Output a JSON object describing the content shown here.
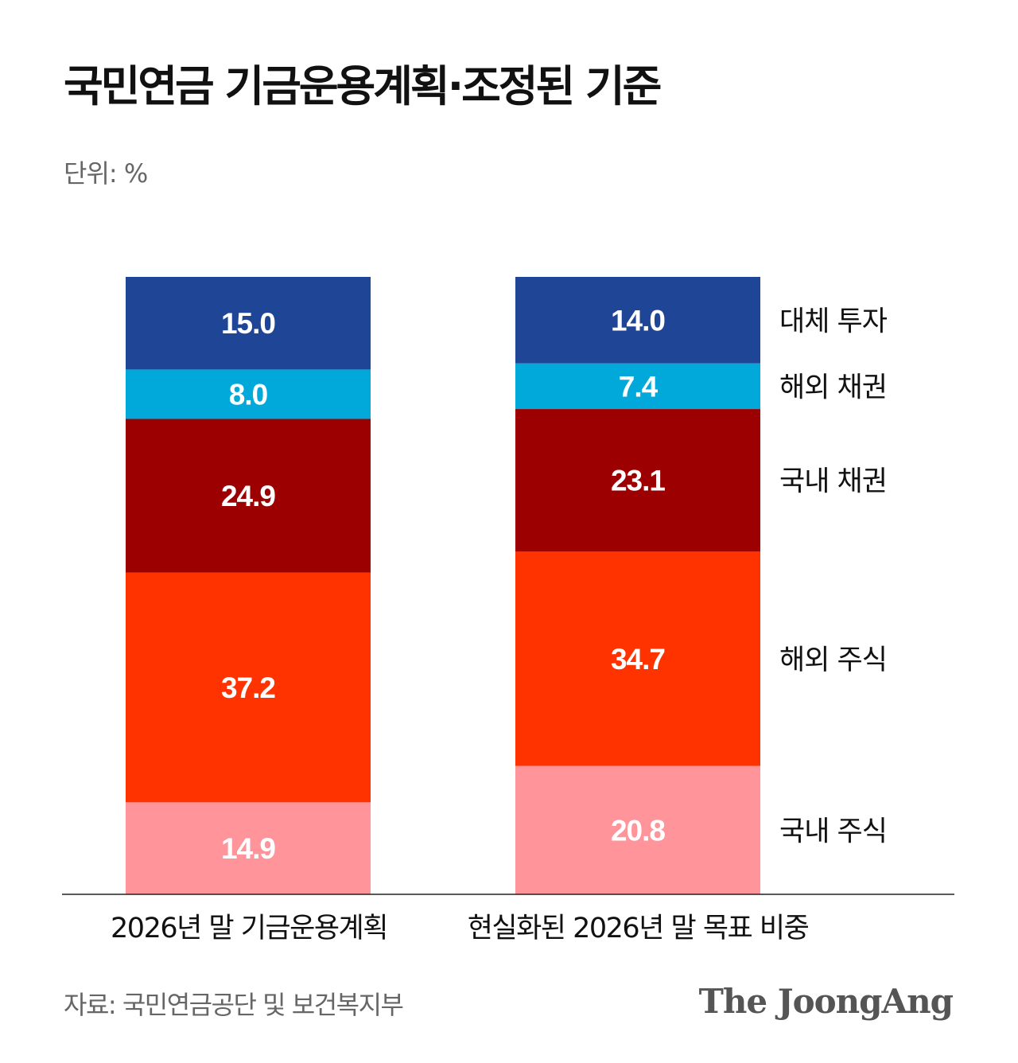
{
  "title": "국민연금 기금운용계획·조정된 기준",
  "unit": "단위: %",
  "source": "자료: 국민연금공단 및 보건복지부",
  "logo": "The JoongAng",
  "chart_data": {
    "type": "bar",
    "stacked": true,
    "categories": [
      "2026년 말 기금운용계획",
      "현실화된 2026년 말 목표 비중"
    ],
    "series": [
      {
        "name": "국내 주식",
        "color": "#ff949b",
        "values": [
          14.9,
          20.8
        ]
      },
      {
        "name": "해외 주식",
        "color": "#ff3300",
        "values": [
          37.2,
          34.7
        ]
      },
      {
        "name": "국내 채권",
        "color": "#9c0000",
        "values": [
          24.9,
          23.1
        ]
      },
      {
        "name": "해외 채권",
        "color": "#00a9d9",
        "values": [
          8.0,
          7.4
        ]
      },
      {
        "name": "대체 투자",
        "color": "#1e4596",
        "values": [
          15.0,
          14.0
        ]
      }
    ],
    "value_labels": [
      [
        "14.9",
        "20.8"
      ],
      [
        "37.2",
        "34.7"
      ],
      [
        "24.9",
        "23.1"
      ],
      [
        "8.0",
        "7.4"
      ],
      [
        "15.0",
        "14.0"
      ]
    ],
    "ylim": [
      0,
      100
    ],
    "legend_position": "right"
  }
}
